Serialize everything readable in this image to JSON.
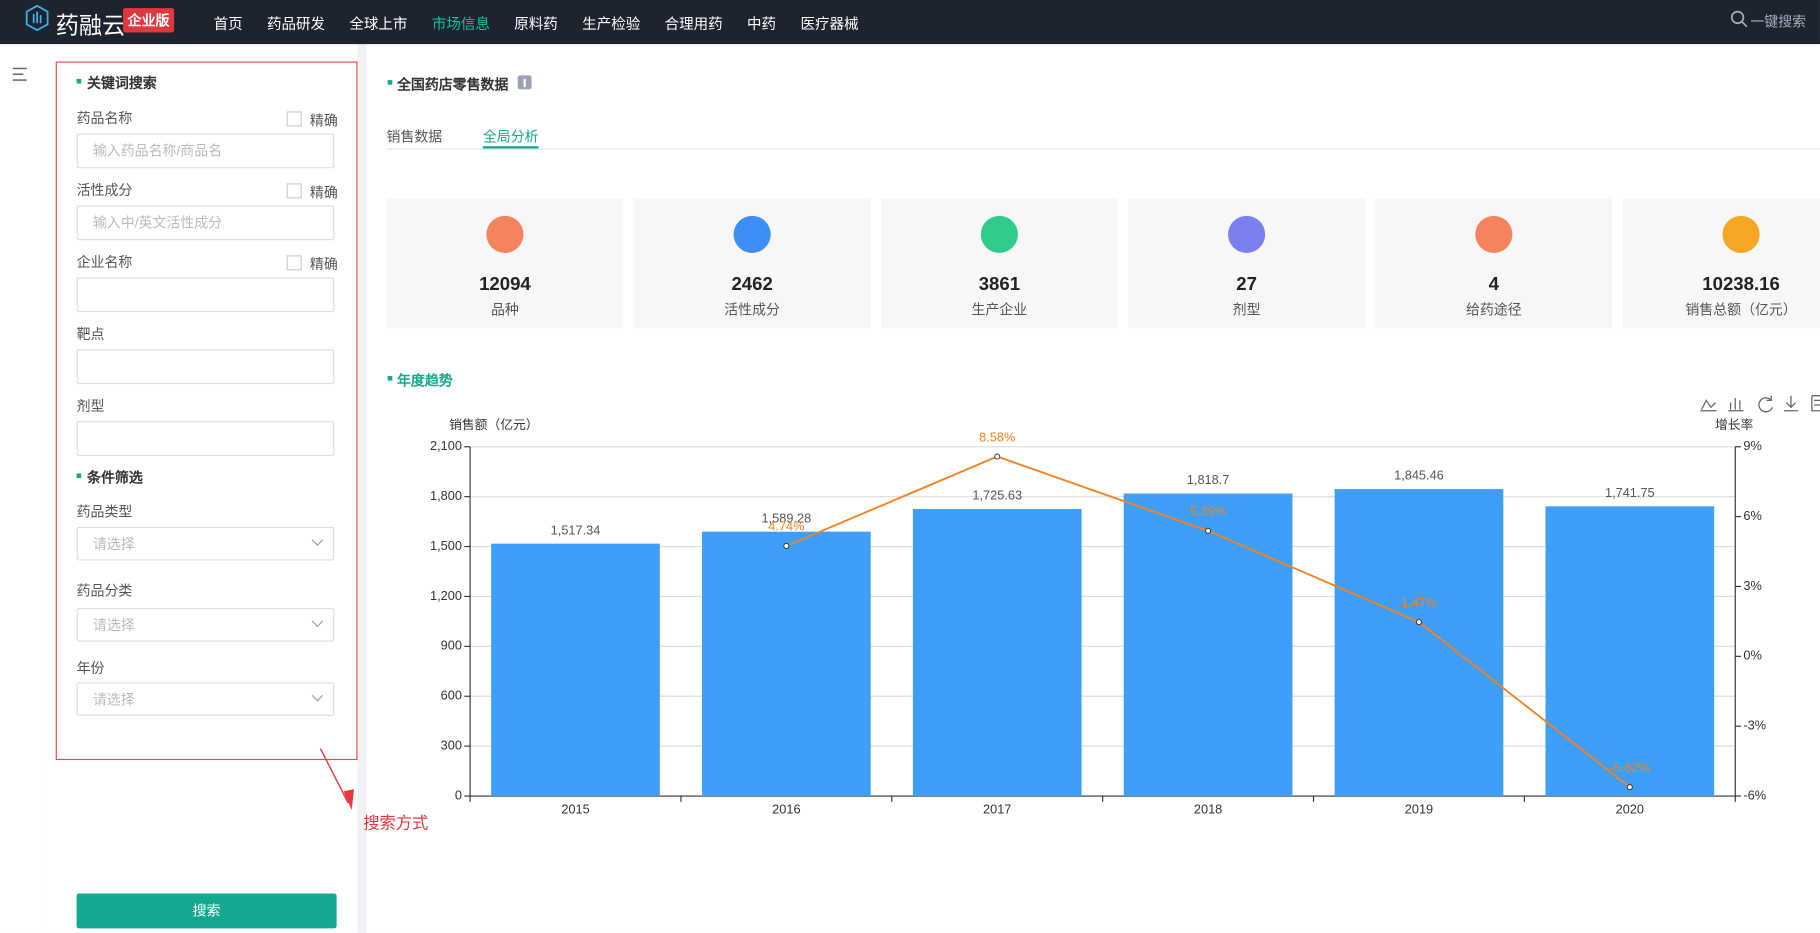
{
  "header": {
    "logo": "药融云",
    "badge": "企业版",
    "nav": [
      "首页",
      "药品研发",
      "全球上市",
      "市场信息",
      "原料药",
      "生产检验",
      "合理用药",
      "中药",
      "医疗器械"
    ],
    "active": 3,
    "search": "一键搜索"
  },
  "sidebar": {
    "sections": [
      {
        "title": "关键词搜索",
        "fields": [
          {
            "label": "药品名称",
            "exact": "精确",
            "placeholder": "输入药品名称/商品名"
          },
          {
            "label": "活性成分",
            "exact": "精确",
            "placeholder": "输入中/英文活性成分"
          },
          {
            "label": "企业名称",
            "exact": "精确"
          },
          {
            "label": "靶点"
          },
          {
            "label": "剂型"
          }
        ]
      },
      {
        "title": "条件筛选",
        "fields": [
          {
            "label": "药品类型",
            "placeholder": "请选择"
          },
          {
            "label": "药品分类",
            "placeholder": "请选择"
          },
          {
            "label": "年份",
            "placeholder": "请选择"
          }
        ]
      }
    ],
    "button": "搜索"
  },
  "annotation": "搜索方式",
  "main": {
    "title": "全国药店零售数据",
    "tabs": [
      "销售数据",
      "全局分析"
    ],
    "active_tab": 1,
    "section": "年度趋势",
    "stats": [
      {
        "value": 12094,
        "label": "品种",
        "color": "#f5845e"
      },
      {
        "value": 2462,
        "label": "活性成分",
        "color": "#3d8ff5"
      },
      {
        "value": 3861,
        "label": "生产企业",
        "color": "#2ecb8b"
      },
      {
        "value": 27,
        "label": "剂型",
        "color": "#7b7ff0"
      },
      {
        "value": 4,
        "label": "给药途径",
        "color": "#f5845e"
      },
      {
        "value": 10238.16,
        "label": "销售总额（亿元）",
        "color": "#f5a623"
      }
    ]
  },
  "chart_data": {
    "type": "bar",
    "y_label": "销售额（亿元）",
    "y2_label": "增长率",
    "categories": [
      "2015",
      "2016",
      "2017",
      "2018",
      "2019",
      "2020"
    ],
    "series": [
      {
        "type": "bar",
        "color": "#3f9ef8",
        "values": [
          1517.34,
          1589.28,
          1725.63,
          1818.7,
          1845.46,
          1741.75
        ],
        "value_labels": [
          "1,517.34",
          "1,589.28",
          "1,725.63",
          "1,818.7",
          "1,845.46",
          "1,741.75"
        ]
      },
      {
        "type": "line",
        "axis": "y2",
        "color": "#f5821f",
        "values": [
          null,
          4.74,
          8.58,
          5.39,
          1.47,
          -5.62
        ],
        "value_labels": [
          null,
          "4.74%",
          "8.58%",
          "5.39%",
          "1.47%",
          "-5.62%"
        ]
      }
    ],
    "ylim": [
      0,
      2100
    ],
    "yticks": [
      0,
      300,
      600,
      900,
      {
        "value": 1200,
        "label": "1,200"
      },
      {
        "value": 1500,
        "label": "1,500"
      },
      {
        "value": 1800,
        "label": "1,800"
      },
      {
        "value": 2100,
        "label": "2,100"
      }
    ],
    "y2lim": [
      -6,
      9
    ],
    "y2ticks": [
      {
        "value": -6,
        "label": "-6%"
      },
      {
        "value": -3,
        "label": "-3%"
      },
      {
        "value": 0,
        "label": "0%"
      },
      {
        "value": 3,
        "label": "3%"
      },
      {
        "value": 6,
        "label": "6%"
      },
      {
        "value": 9,
        "label": "9%"
      }
    ],
    "grid": true
  }
}
